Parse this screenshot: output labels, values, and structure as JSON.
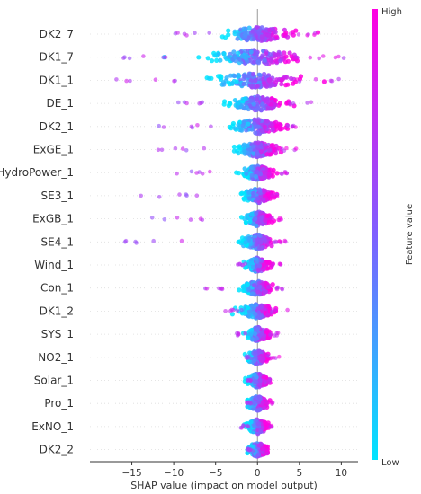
{
  "chart_data": {
    "type": "scatter",
    "xlabel": "SHAP value (impact on model output)",
    "xlim": [
      -20,
      12
    ],
    "xticks": [
      -15,
      -10,
      -5,
      0,
      5,
      10
    ],
    "xtick_labels": [
      "−15",
      "−10",
      "−5",
      "0",
      "5",
      "10"
    ],
    "features": [
      {
        "name": "DK2_7",
        "min": -12,
        "max": 7.5
      },
      {
        "name": "DK1_7",
        "min": -17,
        "max": 10.5
      },
      {
        "name": "DK1_1",
        "min": -18.5,
        "max": 10.2
      },
      {
        "name": "DE_1",
        "min": -14,
        "max": 6.5
      },
      {
        "name": "DK2_1",
        "min": -12,
        "max": 5.5
      },
      {
        "name": "ExGE_1",
        "min": -13,
        "max": 5.0
      },
      {
        "name": "HydroPower_1",
        "min": -10,
        "max": 3.5
      },
      {
        "name": "SE3_1",
        "min": -14,
        "max": 3.2
      },
      {
        "name": "ExGB_1",
        "min": -13,
        "max": 3.0
      },
      {
        "name": "SE4_1",
        "min": -18,
        "max": 3.8
      },
      {
        "name": "Wind_1",
        "min": -2.5,
        "max": 3.0
      },
      {
        "name": "Con_1",
        "min": -8,
        "max": 3.2
      },
      {
        "name": "DK1_2",
        "min": -4,
        "max": 3.8
      },
      {
        "name": "SYS_1",
        "min": -3,
        "max": 2.5
      },
      {
        "name": "NO2_1",
        "min": -1.5,
        "max": 2.8
      },
      {
        "name": "Solar_1",
        "min": -1.5,
        "max": 1.5
      },
      {
        "name": "Pro_1",
        "min": -1.5,
        "max": 2.0
      },
      {
        "name": "ExNO_1",
        "min": -2.0,
        "max": 1.8
      },
      {
        "name": "DK2_2",
        "min": -1.2,
        "max": 1.2
      }
    ],
    "colorbar": {
      "label": "Feature value",
      "high": "High",
      "low": "Low",
      "colors": {
        "low": "#00e5ff",
        "mid": "#7f5fff",
        "high": "#ff00e1"
      }
    },
    "grid": false,
    "zero_line": true
  }
}
